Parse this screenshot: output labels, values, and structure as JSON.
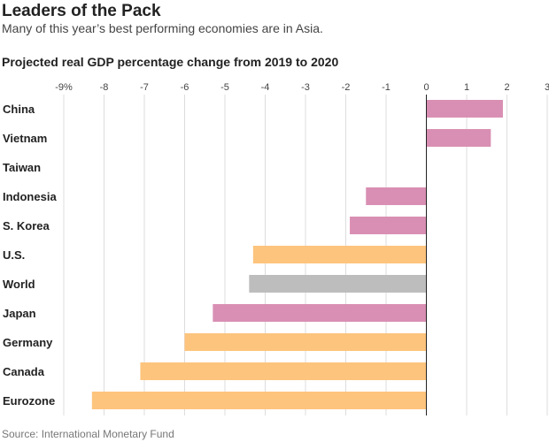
{
  "header": {
    "title": "Leaders of the Pack",
    "subtitle": "Many of this year’s best performing economies are in Asia.",
    "chart_heading": "Projected real GDP percentage change from 2019 to 2020",
    "source": "Source: International Monetary Fund"
  },
  "colors": {
    "asia": "#d98fb3",
    "other": "#fdc47d",
    "world": "#bdbdbd",
    "grid": "#dddddd",
    "axis": "#222222"
  },
  "chart_data": {
    "type": "bar",
    "orientation": "horizontal",
    "title": "Projected real GDP percentage change from 2019 to 2020",
    "categories": [
      "China",
      "Vietnam",
      "Taiwan",
      "Indonesia",
      "S. Korea",
      "U.S.",
      "World",
      "Japan",
      "Germany",
      "Canada",
      "Eurozone"
    ],
    "values": [
      1.9,
      1.6,
      0,
      -1.5,
      -1.9,
      -4.3,
      -4.4,
      -5.3,
      -6.0,
      -7.1,
      -8.3
    ],
    "groups": [
      "asia",
      "asia",
      "asia",
      "asia",
      "asia",
      "other",
      "world",
      "asia",
      "other",
      "other",
      "other"
    ],
    "xlim": [
      -9,
      3
    ],
    "xticks": [
      -9,
      -8,
      -7,
      -6,
      -5,
      -4,
      -3,
      -2,
      -1,
      0,
      1,
      2,
      3
    ],
    "xtick_labels": [
      "-9%",
      "-8",
      "-7",
      "-6",
      "-5",
      "-4",
      "-3",
      "-2",
      "-1",
      "0",
      "1",
      "2",
      "3"
    ],
    "grid": true,
    "legend": "none"
  }
}
